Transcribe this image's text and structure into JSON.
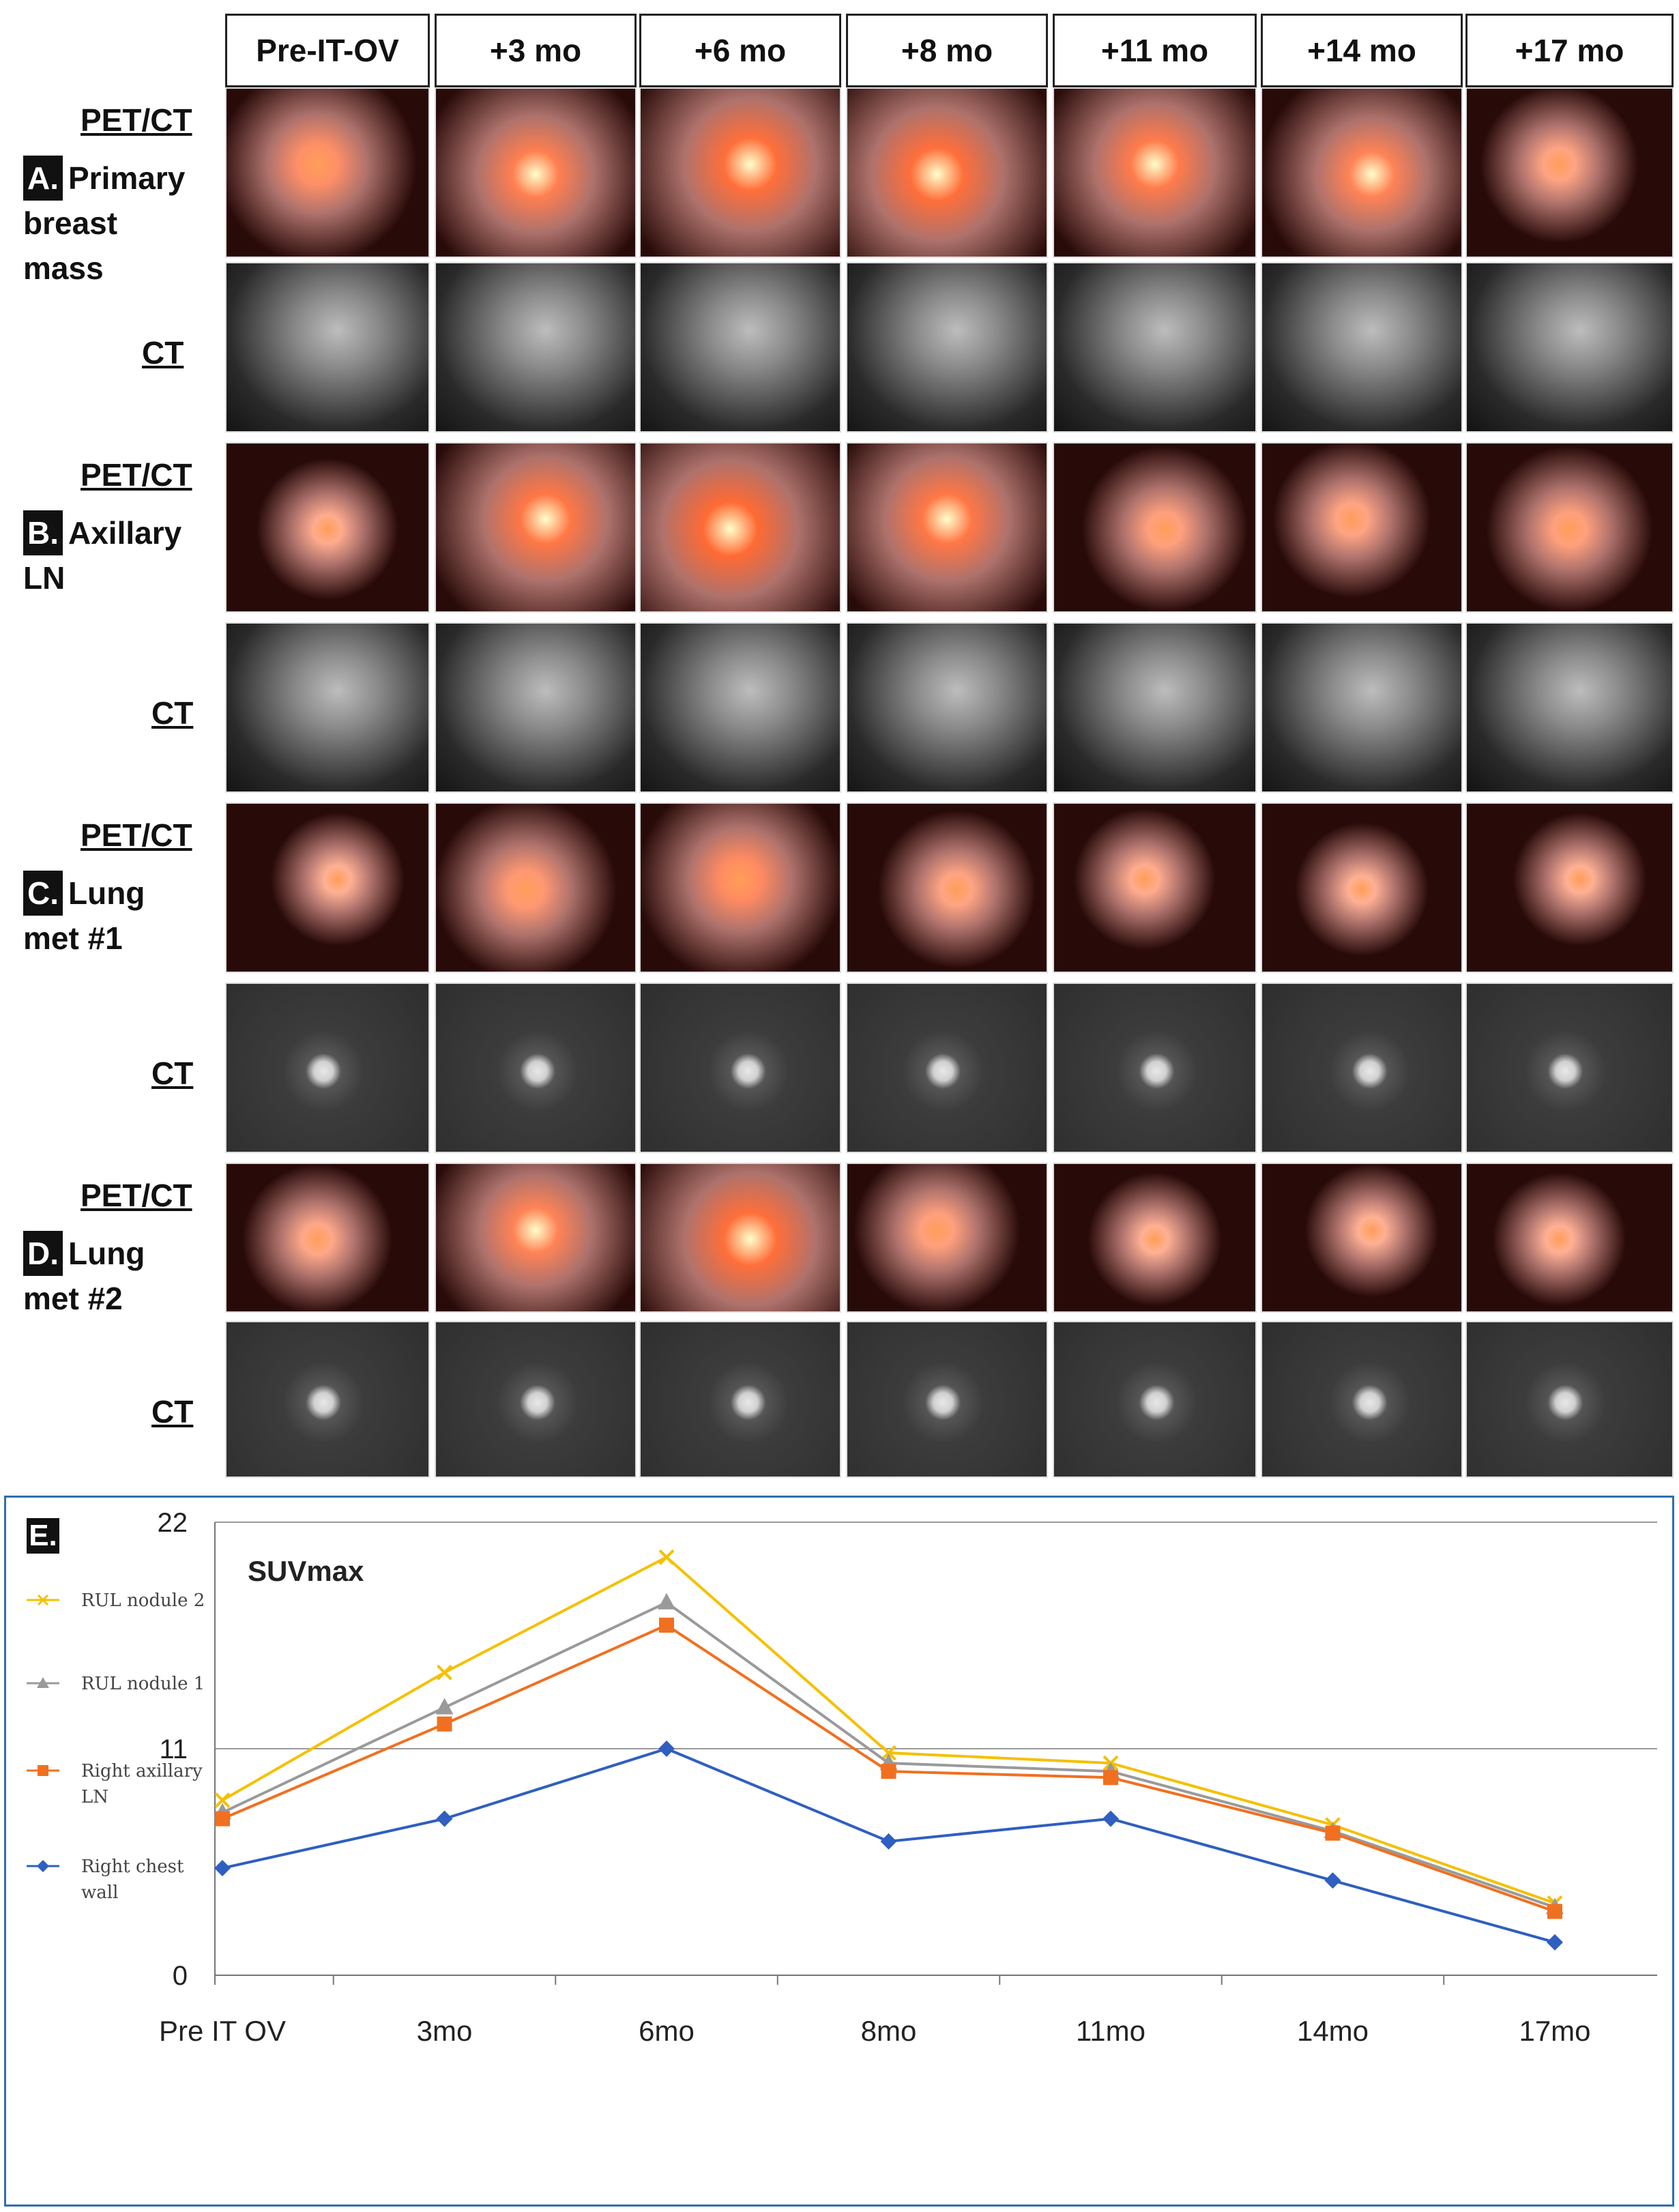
{
  "columns": [
    "Pre-IT-OV",
    "+3 mo",
    "+6 mo",
    "+8 mo",
    "+11 mo",
    "+14 mo",
    "+17 mo"
  ],
  "rows": [
    {
      "letter": "A.",
      "label_lines": [
        "Primary",
        "breast",
        "mass"
      ],
      "pet_label": "PET/CT",
      "ct_label": "CT",
      "pet_intensity": [
        0.55,
        0.75,
        0.95,
        0.95,
        0.8,
        0.7,
        0.3
      ]
    },
    {
      "letter": "B.",
      "label_lines": [
        "Axillary",
        "LN"
      ],
      "pet_label": "PET/CT",
      "ct_label": "CT",
      "pet_intensity": [
        0.2,
        0.85,
        1.0,
        0.85,
        0.35,
        0.3,
        0.35
      ]
    },
    {
      "letter": "C.",
      "label_lines": [
        "Lung",
        "met #1"
      ],
      "pet_label": "PET/CT",
      "ct_label": "CT",
      "pet_intensity": [
        0.15,
        0.45,
        0.6,
        0.3,
        0.2,
        0.15,
        0.15
      ]
    },
    {
      "letter": "D.",
      "label_lines": [
        "Lung",
        "met #2"
      ],
      "pet_label": "PET/CT",
      "ct_label": "CT",
      "pet_intensity": [
        0.25,
        0.7,
        0.95,
        0.35,
        0.15,
        0.15,
        0.15
      ]
    }
  ],
  "panel_e_letter": "E.",
  "colors": {
    "rul2": "#f5c000",
    "rul1": "#9a9a9a",
    "axillary": "#f07020",
    "chest": "#2f5fc0",
    "chart_border": "#2f6fb0"
  },
  "chart_data": {
    "type": "line",
    "title": "SUVmax",
    "categories": [
      "Pre IT OV",
      "3mo",
      "6mo",
      "8mo",
      "11mo",
      "14mo",
      "17mo"
    ],
    "ylim": [
      0,
      22
    ],
    "yticks": [
      0,
      11,
      22
    ],
    "grid": "horizontal at 11 and 22",
    "legend_position": "left",
    "series": [
      {
        "name": "RUL nodule 2",
        "marker": "x",
        "color": "#f5c000",
        "values": [
          8.5,
          14.7,
          20.3,
          10.8,
          10.3,
          7.3,
          3.5
        ]
      },
      {
        "name": "RUL nodule 1",
        "marker": "triangle",
        "color": "#9a9a9a",
        "values": [
          7.9,
          13.0,
          18.1,
          10.3,
          9.9,
          7.0,
          3.3
        ]
      },
      {
        "name": "Right axillary LN",
        "marker": "square",
        "color": "#f07020",
        "values": [
          7.6,
          12.2,
          17.0,
          9.9,
          9.6,
          6.9,
          3.1
        ]
      },
      {
        "name": "Right chest wall",
        "marker": "diamond",
        "color": "#2f5fc0",
        "values": [
          5.2,
          7.6,
          11.0,
          6.5,
          7.6,
          4.6,
          1.6
        ]
      }
    ]
  }
}
